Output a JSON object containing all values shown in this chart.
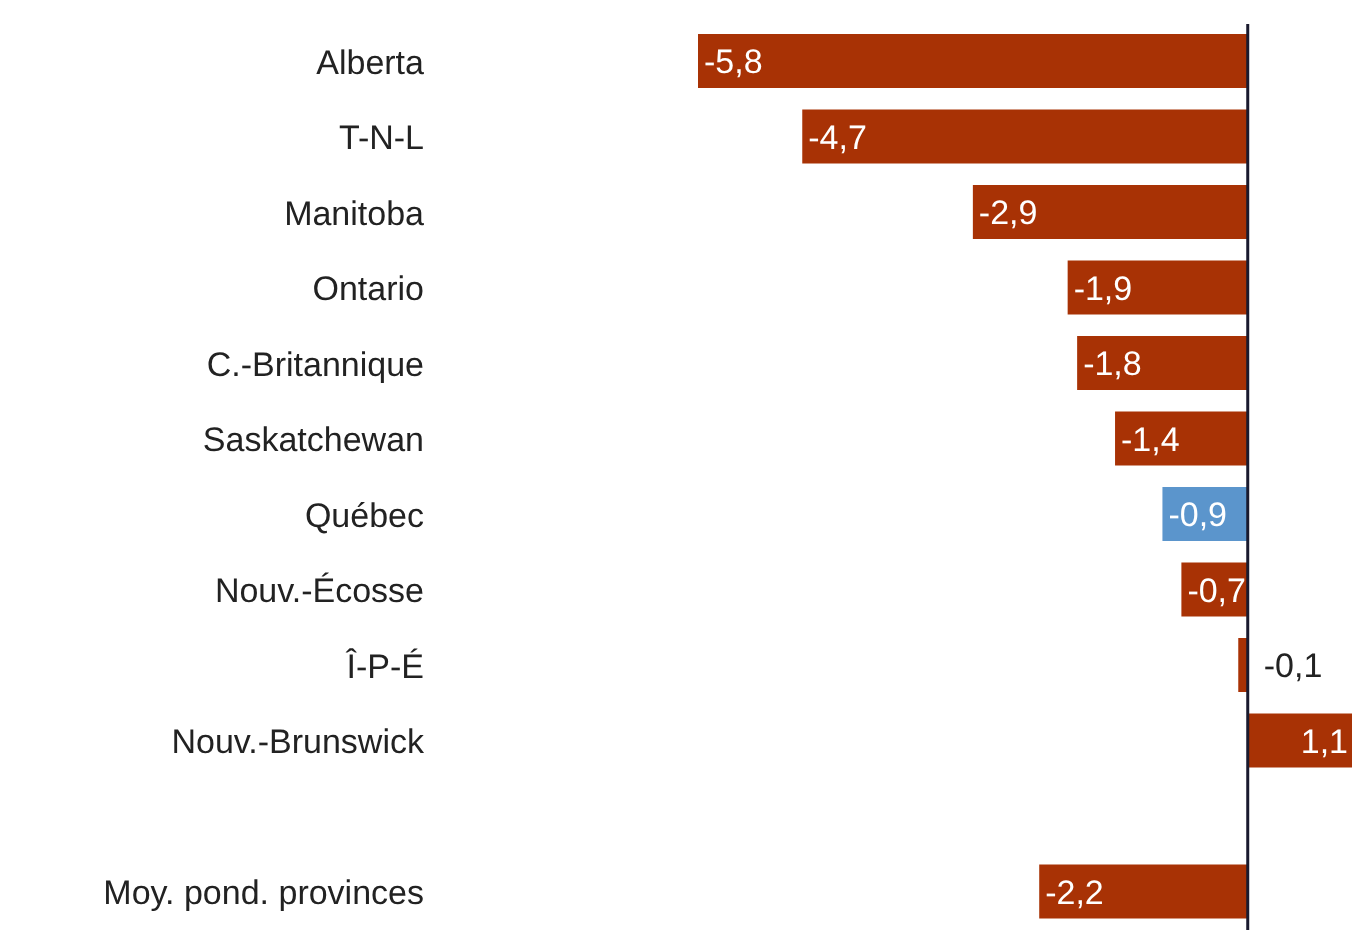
{
  "chart_data": {
    "type": "bar",
    "orientation": "horizontal",
    "categories": [
      "Alberta",
      "T-N-L",
      "Manitoba",
      "Ontario",
      "C.-Britannique",
      "Saskatchewan",
      "Québec",
      "Nouv.-Écosse",
      "Î-P-É",
      "Nouv.-Brunswick",
      null,
      "Moy. pond. provinces"
    ],
    "values": [
      -5.8,
      -4.7,
      -2.9,
      -1.9,
      -1.8,
      -1.4,
      -0.9,
      -0.7,
      -0.1,
      1.1,
      null,
      -2.2
    ],
    "value_labels": [
      "-5,8",
      "-4,7",
      "-2,9",
      "-1,9",
      "-1,8",
      "-1,4",
      "-0,9",
      "-0,7",
      "-0,1",
      "1,1",
      null,
      "-2,2"
    ],
    "colors": [
      "#a83205",
      "#a83205",
      "#a83205",
      "#a83205",
      "#a83205",
      "#a83205",
      "#5b95cc",
      "#a83205",
      "#a83205",
      "#a83205",
      null,
      "#a83205"
    ],
    "ref_lines": [
      {
        "axis": "x",
        "value": 0,
        "color": "#1a1a2e"
      }
    ],
    "grid": false
  }
}
